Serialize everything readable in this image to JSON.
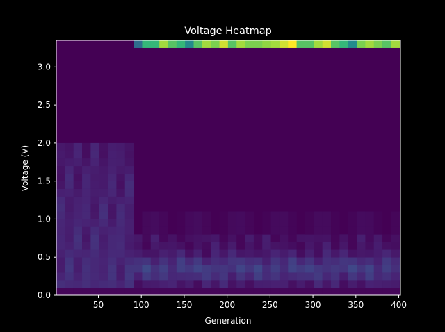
{
  "chart_data": {
    "type": "heatmap",
    "title": "Voltage Heatmap",
    "xlabel": "Generation",
    "ylabel": "Voltage (V)",
    "xlim": [
      1,
      402
    ],
    "ylim": [
      0,
      3.35
    ],
    "x_ticks": [
      50,
      100,
      150,
      200,
      250,
      300,
      350,
      400
    ],
    "y_ticks": [
      0.0,
      0.5,
      1.0,
      1.5,
      2.0,
      2.5,
      3.0
    ],
    "x_bin_width": 10,
    "y_bin_width": 0.1,
    "colormap": "viridis",
    "grid": false,
    "colors": {
      "background": "#000000",
      "axes_face": "#440154",
      "text": "#ffffff"
    },
    "description_of_values": "intensity per (generation bin, voltage bin), 0-1 normalized",
    "top_row_values": [
      0.0,
      0.0,
      0.0,
      0.0,
      0.0,
      0.0,
      0.0,
      0.0,
      0.0,
      0.45,
      0.75,
      0.75,
      0.9,
      0.8,
      0.75,
      0.6,
      0.8,
      0.9,
      0.85,
      0.95,
      0.8,
      0.9,
      0.85,
      0.85,
      0.88,
      0.9,
      0.95,
      1.0,
      0.8,
      0.8,
      0.9,
      0.95,
      0.8,
      0.75,
      0.6,
      0.85,
      0.9,
      0.85,
      0.8,
      0.9
    ]
  }
}
